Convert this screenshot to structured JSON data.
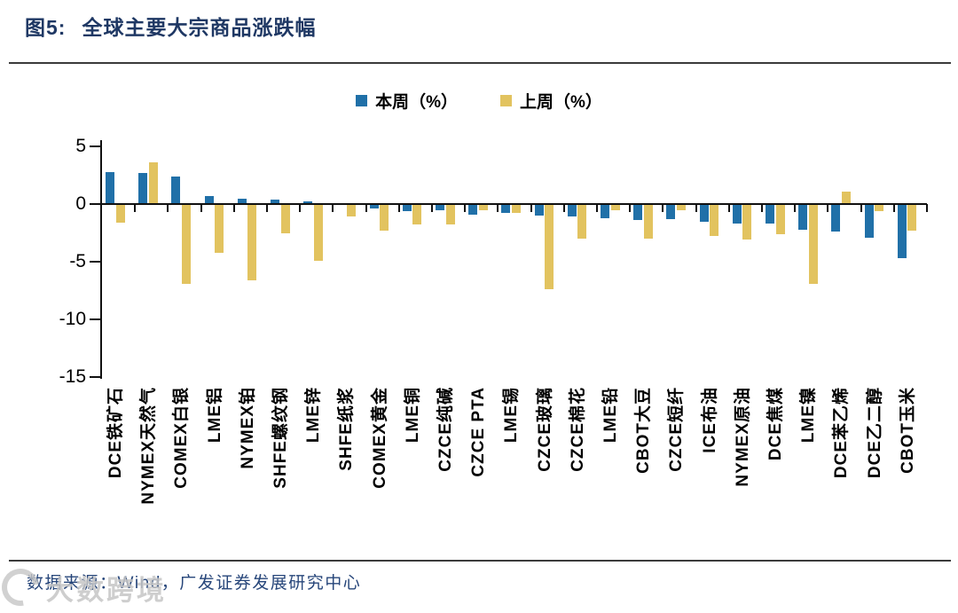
{
  "header": {
    "figure_label": "图5:",
    "title": "全球主要大宗商品涨跌幅"
  },
  "chart_data": {
    "type": "bar",
    "title": "全球主要大宗商品涨跌幅",
    "categories": [
      "DCE铁矿石",
      "NYMEX天然气",
      "COMEX白银",
      "LME铝",
      "NYMEX铂",
      "SHFE螺纹钢",
      "LME锌",
      "SHFE纸浆",
      "COMEX黄金",
      "LME铜",
      "CZCE纯碱",
      "CZCE PTA",
      "LME锡",
      "CZCE玻璃",
      "CZCE棉花",
      "LME铅",
      "CBOT大豆",
      "CZCE短纤",
      "ICE布油",
      "NYMEX原油",
      "DCE焦煤",
      "LME镍",
      "DCE苯乙烯",
      "DCE乙二醇",
      "CBOT玉米"
    ],
    "series": [
      {
        "name": "本周（%）",
        "color": "#2070A8",
        "values": [
          2.8,
          2.7,
          2.4,
          0.7,
          0.5,
          0.4,
          0.2,
          0.0,
          -0.4,
          -0.6,
          -0.5,
          -0.9,
          -0.8,
          -1.0,
          -1.1,
          -1.2,
          -1.4,
          -1.3,
          -1.5,
          -1.7,
          -1.7,
          -2.2,
          -2.4,
          -2.9,
          -4.7
        ]
      },
      {
        "name": "上周（%）",
        "color": "#E2C35F",
        "values": [
          -1.6,
          3.6,
          -6.9,
          -4.2,
          -6.6,
          -2.5,
          -4.9,
          -1.1,
          -2.3,
          -1.8,
          -1.8,
          -0.5,
          -0.8,
          -7.4,
          -3.0,
          -0.5,
          -3.0,
          -0.5,
          -2.8,
          -3.1,
          -2.6,
          -6.9,
          1.1,
          -0.6,
          -2.3
        ]
      }
    ],
    "ylim": [
      -15,
      5
    ],
    "yticks": [
      5,
      0,
      -5,
      -10,
      -15
    ],
    "xlabel": "",
    "ylabel": "",
    "grid": false,
    "legend_position": "top-center",
    "axis_color": "#111111"
  },
  "footer": {
    "source": "数据来源：Wind，广发证券发展研究中心"
  },
  "watermark": {
    "text": "大数跨境"
  }
}
